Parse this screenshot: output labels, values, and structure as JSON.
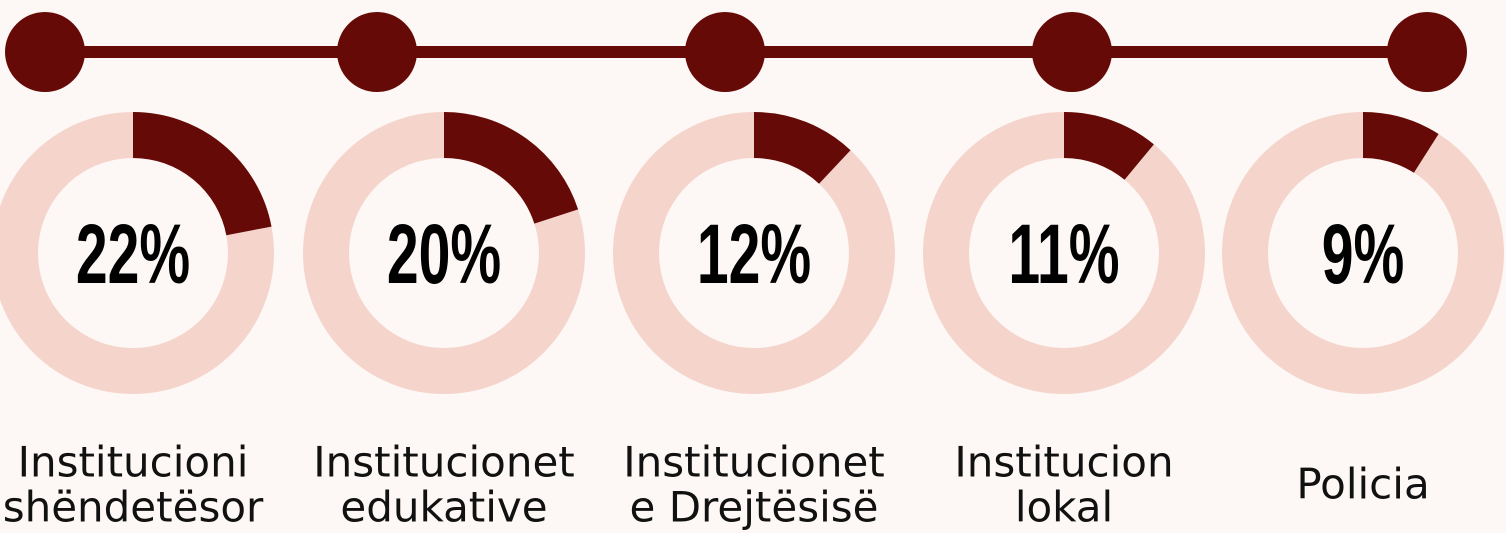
{
  "chart_data": [
    {
      "type": "donut",
      "title": [
        "Institucioni",
        "shëndetësor"
      ],
      "values": [
        22
      ],
      "value_labels": [
        "22%"
      ],
      "color": "#650a06",
      "track_color": "#f5d5cb"
    },
    {
      "type": "donut",
      "title": [
        "Institucionet",
        "edukative"
      ],
      "values": [
        20
      ],
      "value_labels": [
        "20%"
      ],
      "color": "#650a06",
      "track_color": "#f5d5cb"
    },
    {
      "type": "donut",
      "title": [
        "Institucionet",
        "e Drejtësisë"
      ],
      "values": [
        12
      ],
      "value_labels": [
        "12%"
      ],
      "color": "#650a06",
      "track_color": "#f5d5cb"
    },
    {
      "type": "donut",
      "title": [
        "Institucion",
        "lokal"
      ],
      "values": [
        11
      ],
      "value_labels": [
        "11%"
      ],
      "color": "#650a06",
      "track_color": "#f5d5cb"
    },
    {
      "type": "donut",
      "title": [
        "Policia"
      ],
      "values": [
        9
      ],
      "value_labels": [
        "9%"
      ],
      "color": "#650a06",
      "track_color": "#f5d5cb"
    }
  ]
}
